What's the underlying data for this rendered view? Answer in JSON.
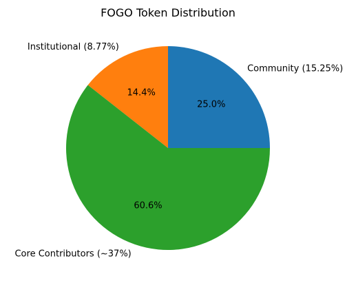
{
  "chart_data": {
    "type": "pie",
    "title": "FOGO Token Distribution",
    "start_angle_deg": 0,
    "direction": "counterclockwise",
    "slices": [
      {
        "label": "Community (15.25%)",
        "pct_label": "25.0%",
        "value": 25.0,
        "color": "#1f77b4"
      },
      {
        "label": "Institutional (8.77%)",
        "pct_label": "14.4%",
        "value": 14.4,
        "color": "#ff7f0e"
      },
      {
        "label": "Core Contributors (~37%)",
        "pct_label": "60.6%",
        "value": 60.6,
        "color": "#2ca02c"
      }
    ]
  }
}
